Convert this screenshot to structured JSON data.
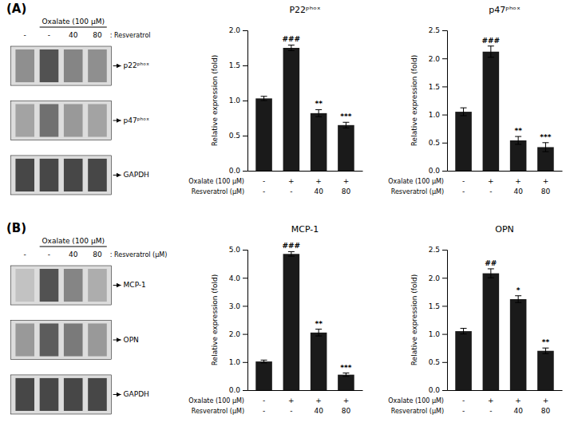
{
  "chart_data": [
    {
      "type": "gel",
      "title": "(A)",
      "subtitle": "Oxalate (100 μM)",
      "categories": [
        "-",
        "-",
        "40",
        "80"
      ],
      "xlabel": ": Resveratrol",
      "series": [
        {
          "name": "p22ᵖʰᵒˣ",
          "values": [
            0.55,
            0.85,
            0.6,
            0.55
          ]
        },
        {
          "name": "p47ᵖʰᵒˣ",
          "values": [
            0.45,
            0.7,
            0.5,
            0.45
          ]
        },
        {
          "name": "GAPDH",
          "values": [
            0.9,
            0.9,
            0.9,
            0.9
          ]
        }
      ]
    },
    {
      "type": "bar",
      "title": "P22ᵖʰᵒˣ",
      "categories": [
        [
          "-",
          "-"
        ],
        [
          "+",
          "-"
        ],
        [
          "+",
          "40"
        ],
        [
          "+",
          "80"
        ]
      ],
      "category_rows": [
        "Oxalate (100 μM)",
        "Resveratrol (μM)"
      ],
      "values": [
        1.03,
        1.75,
        0.82,
        0.65
      ],
      "errors": [
        0.03,
        0.04,
        0.05,
        0.04
      ],
      "significance": [
        null,
        "###",
        "**",
        "***"
      ],
      "color": "#1a1a1a",
      "ylim": [
        0,
        2.0
      ],
      "yticks": [
        {
          "value": 0.0,
          "label": "0.0"
        },
        0.5,
        {
          "value": 1.0,
          "label": "1.0"
        },
        1.5,
        {
          "value": 2.0,
          "label": "2.0"
        }
      ],
      "ylabel": "Relative expression (fold)"
    },
    {
      "type": "bar",
      "title": "p47ᵖʰᵒˣ",
      "categories": [
        [
          "-",
          "-"
        ],
        [
          "+",
          "-"
        ],
        [
          "+",
          "40"
        ],
        [
          "+",
          "80"
        ]
      ],
      "category_rows": [
        "Oxalate (100 μM)",
        "Resveratrol (μM)"
      ],
      "values": [
        1.05,
        2.12,
        0.54,
        0.42
      ],
      "errors": [
        0.07,
        0.1,
        0.07,
        0.08
      ],
      "significance": [
        null,
        "###",
        "**",
        "***"
      ],
      "color": "#1a1a1a",
      "ylim": [
        0,
        2.5
      ],
      "yticks": [
        {
          "value": 0.0,
          "label": "0.0"
        },
        0.5,
        {
          "value": 1.0,
          "label": "1.0"
        },
        1.5,
        {
          "value": 2.0,
          "label": "2.0"
        },
        2.5
      ],
      "ylabel": "Relative expression (fold)"
    },
    {
      "type": "gel",
      "title": "(B)",
      "subtitle": "Oxalate (100 μM)",
      "categories": [
        "-",
        "-",
        "40",
        "80"
      ],
      "xlabel": ": Resveratrol (μM)",
      "series": [
        {
          "name": "MCP-1",
          "values": [
            0.3,
            0.85,
            0.6,
            0.4
          ]
        },
        {
          "name": "OPN",
          "values": [
            0.5,
            0.8,
            0.65,
            0.5
          ]
        },
        {
          "name": "GAPDH",
          "values": [
            0.9,
            0.9,
            0.9,
            0.9
          ]
        }
      ]
    },
    {
      "type": "bar",
      "title": "MCP-1",
      "categories": [
        [
          "-",
          "-"
        ],
        [
          "+",
          "-"
        ],
        [
          "+",
          "40"
        ],
        [
          "+",
          "80"
        ]
      ],
      "category_rows": [
        "Oxalate (100 μM)",
        "Resveratrol (μM)"
      ],
      "values": [
        1.02,
        4.85,
        2.05,
        0.55
      ],
      "errors": [
        0.05,
        0.08,
        0.12,
        0.06
      ],
      "significance": [
        null,
        "###",
        "**",
        "***"
      ],
      "color": "#1a1a1a",
      "ylim": [
        0,
        5.0
      ],
      "yticks": [
        {
          "value": 0.0,
          "label": "0.0"
        },
        {
          "value": 1.0,
          "label": "1.0"
        },
        {
          "value": 2.0,
          "label": "2.0"
        },
        {
          "value": 3.0,
          "label": "3.0"
        },
        {
          "value": 4.0,
          "label": "4.0"
        },
        {
          "value": 5.0,
          "label": "5.0"
        }
      ],
      "ylabel": "Relative expression (fold)"
    },
    {
      "type": "bar",
      "title": "OPN",
      "categories": [
        [
          "-",
          "-"
        ],
        [
          "+",
          "-"
        ],
        [
          "+",
          "40"
        ],
        [
          "+",
          "80"
        ]
      ],
      "category_rows": [
        "Oxalate (100 μM)",
        "Resveratrol (μM)"
      ],
      "values": [
        1.05,
        2.08,
        1.62,
        0.7
      ],
      "errors": [
        0.05,
        0.08,
        0.06,
        0.05
      ],
      "significance": [
        null,
        "##",
        "*",
        "**"
      ],
      "color": "#1a1a1a",
      "ylim": [
        0,
        2.5
      ],
      "yticks": [
        {
          "value": 0.0,
          "label": "0.0"
        },
        0.5,
        {
          "value": 1.0,
          "label": "1.0"
        },
        1.5,
        {
          "value": 2.0,
          "label": "2.0"
        },
        2.5
      ],
      "ylabel": "Relative expression (fold)"
    }
  ]
}
